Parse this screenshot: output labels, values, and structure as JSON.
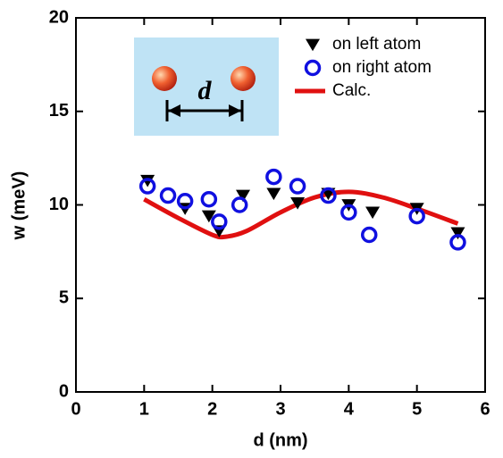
{
  "chart_data": {
    "type": "scatter",
    "xlabel": "d (nm)",
    "ylabel": "w (meV)",
    "inset_label": "d",
    "xlim": [
      0,
      6
    ],
    "xticks": [
      0,
      1,
      2,
      3,
      4,
      5,
      6
    ],
    "ylim": [
      0,
      20
    ],
    "yticks": [
      0,
      5,
      10,
      15,
      20
    ],
    "legend": "upper right",
    "series": [
      {
        "name": "on left atom",
        "color": "#000000",
        "marker": "triangle-down",
        "x": [
          1.05,
          1.6,
          1.95,
          2.1,
          2.45,
          2.9,
          3.25,
          3.7,
          4.0,
          4.35,
          5.0,
          5.6
        ],
        "values": [
          11.3,
          9.8,
          9.4,
          8.6,
          10.5,
          10.6,
          10.1,
          10.6,
          10.0,
          9.6,
          9.8,
          8.5
        ]
      },
      {
        "name": "on right atom",
        "color": "#1010e0",
        "marker": "circle",
        "x": [
          1.05,
          1.35,
          1.6,
          1.95,
          2.1,
          2.4,
          2.9,
          3.25,
          3.7,
          4.0,
          4.3,
          5.0,
          5.6
        ],
        "values": [
          11.0,
          10.5,
          10.2,
          10.3,
          9.1,
          10.0,
          11.5,
          11.0,
          10.5,
          9.6,
          8.4,
          9.4,
          8.0
        ]
      },
      {
        "name": "Calc.",
        "color": "#e01010",
        "marker": "line",
        "x": [
          1.0,
          1.5,
          2.0,
          2.2,
          2.5,
          3.0,
          3.5,
          4.0,
          4.5,
          5.0,
          5.6
        ],
        "values": [
          10.3,
          9.3,
          8.4,
          8.3,
          8.6,
          9.6,
          10.4,
          10.7,
          10.4,
          9.8,
          9.0
        ]
      }
    ]
  }
}
